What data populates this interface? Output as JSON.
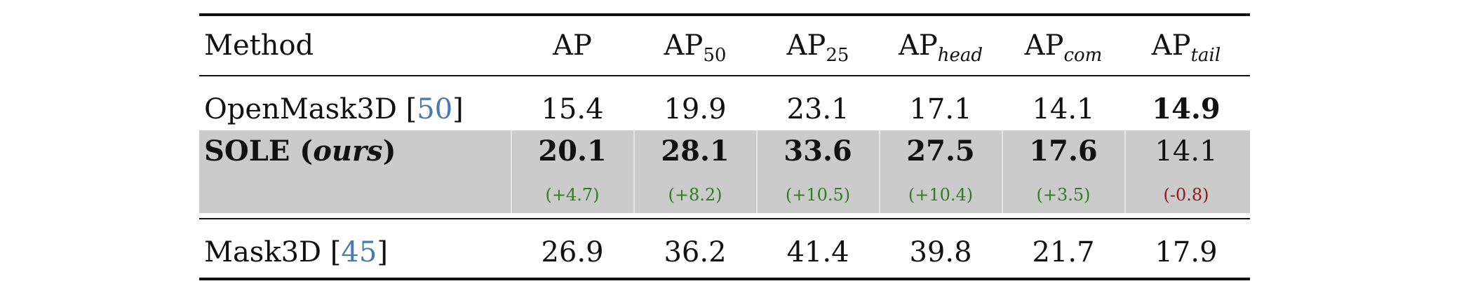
{
  "header": {
    "method": "Method",
    "cols": [
      {
        "base": "AP",
        "sub": "",
        "italic": false
      },
      {
        "base": "AP",
        "sub": "50",
        "italic": false
      },
      {
        "base": "AP",
        "sub": "25",
        "italic": false
      },
      {
        "base": "AP",
        "sub": "head",
        "italic": true
      },
      {
        "base": "AP",
        "sub": "com",
        "italic": true
      },
      {
        "base": "AP",
        "sub": "tail",
        "italic": true
      }
    ]
  },
  "rows": {
    "openmask": {
      "name": "OpenMask3D [",
      "cite": "50",
      "close": "]",
      "values": [
        "15.4",
        "19.9",
        "23.1",
        "17.1",
        "14.1",
        "14.9"
      ]
    },
    "sole": {
      "name": "SOLE (",
      "name_italic": "ours",
      "close": ")",
      "values": [
        "20.1",
        "28.1",
        "33.6",
        "27.5",
        "17.6",
        "14.1"
      ],
      "deltas": [
        "(+4.7)",
        "(+8.2)",
        "(+10.5)",
        "(+10.4)",
        "(+3.5)",
        "(-0.8)"
      ]
    },
    "mask3d": {
      "name": "Mask3D [",
      "cite": "45",
      "close": "]",
      "values": [
        "26.9",
        "36.2",
        "41.4",
        "39.8",
        "21.7",
        "17.9"
      ]
    }
  }
}
